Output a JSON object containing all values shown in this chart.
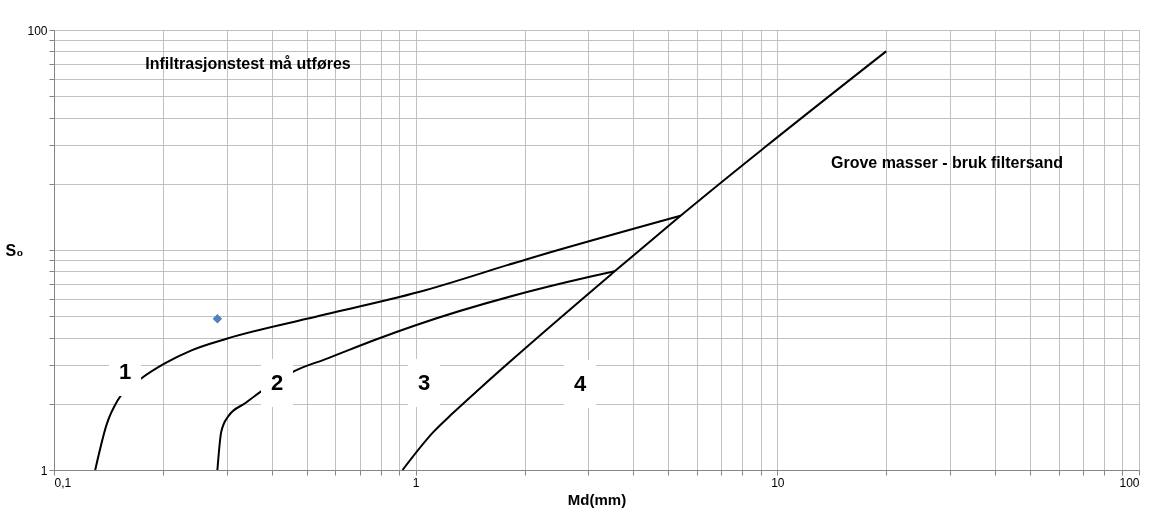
{
  "chart_data": {
    "type": "line",
    "xlabel": "Md(mm)",
    "ylabel": "S₀",
    "log": "xy",
    "grid": true,
    "xlim": [
      0.1,
      100
    ],
    "ylim": [
      1,
      100
    ],
    "xticks": [
      {
        "value": 0.1,
        "label": "0,1"
      },
      {
        "value": 0.2,
        "label": null
      },
      {
        "value": 0.3,
        "label": null
      },
      {
        "value": 0.4,
        "label": null
      },
      {
        "value": 0.5,
        "label": null
      },
      {
        "value": 0.6,
        "label": null
      },
      {
        "value": 0.7,
        "label": null
      },
      {
        "value": 0.8,
        "label": null
      },
      {
        "value": 0.9,
        "label": null
      },
      1,
      {
        "value": 2,
        "label": null
      },
      {
        "value": 3,
        "label": null
      },
      {
        "value": 4,
        "label": null
      },
      {
        "value": 5,
        "label": null
      },
      {
        "value": 6,
        "label": null
      },
      {
        "value": 7,
        "label": null
      },
      {
        "value": 8,
        "label": null
      },
      {
        "value": 9,
        "label": null
      },
      10,
      {
        "value": 20,
        "label": null
      },
      {
        "value": 30,
        "label": null
      },
      {
        "value": 40,
        "label": null
      },
      {
        "value": 50,
        "label": null
      },
      {
        "value": 60,
        "label": null
      },
      {
        "value": 70,
        "label": null
      },
      {
        "value": 80,
        "label": null
      },
      {
        "value": 90,
        "label": null
      },
      100
    ],
    "yticks": [
      1,
      {
        "value": 2,
        "label": null
      },
      {
        "value": 3,
        "label": null
      },
      {
        "value": 4,
        "label": null
      },
      {
        "value": 5,
        "label": null
      },
      {
        "value": 6,
        "label": null
      },
      {
        "value": 7,
        "label": null
      },
      {
        "value": 8,
        "label": null
      },
      {
        "value": 9,
        "label": null
      },
      {
        "value": 10,
        "label": null
      },
      {
        "value": 20,
        "label": null
      },
      {
        "value": 30,
        "label": null
      },
      {
        "value": 40,
        "label": null
      },
      {
        "value": 50,
        "label": null
      },
      {
        "value": 60,
        "label": null
      },
      {
        "value": 70,
        "label": null
      },
      {
        "value": 80,
        "label": null
      },
      {
        "value": 90,
        "label": null
      },
      100
    ],
    "series": [
      {
        "color": "#000000",
        "x": [
          0.13,
          0.14,
          0.151,
          0.175,
          0.203,
          0.24,
          0.3,
          0.5,
          1.02,
          2.02,
          5.4
        ],
        "values": [
          1,
          1.62,
          2.11,
          2.62,
          3.06,
          3.5,
          3.95,
          4.87,
          6.44,
          9.06,
          14.3
        ]
      },
      {
        "color": "#000000",
        "x": [
          0.283,
          0.29,
          0.303,
          0.339,
          0.373,
          0.465,
          0.566,
          0.78,
          1.0,
          3.05,
          3.55
        ],
        "values": [
          1,
          1.49,
          1.75,
          2.02,
          2.27,
          2.83,
          3.2,
          3.93,
          4.55,
          7.57,
          8.0
        ]
      },
      {
        "color": "#000000",
        "x": [
          0.92,
          1.12,
          1.27,
          1.51,
          3.55,
          5.4,
          20
        ],
        "values": [
          1,
          1.49,
          1.82,
          2.36,
          8.0,
          14.3,
          80
        ]
      },
      {
        "type": "scatter",
        "color": "#4f81bd",
        "marker": "diamond",
        "x": [
          0.283
        ],
        "values": [
          4.87
        ]
      }
    ],
    "annotations": [
      "Infiltrasjonstest må utføres",
      "Grove masser - bruk filtersand",
      "1",
      "2",
      "3",
      "4"
    ]
  }
}
